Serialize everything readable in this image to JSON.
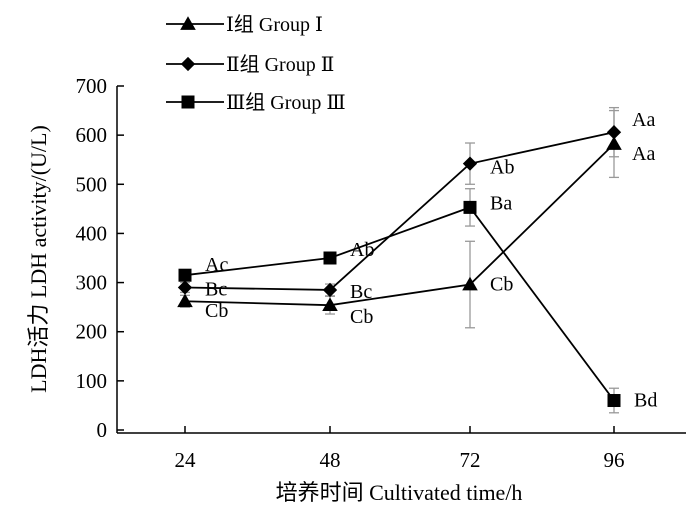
{
  "chart_data": {
    "type": "line",
    "title": "",
    "xlabel": "培养时间  Cultivated time/h",
    "ylabel": "LDH活力  LDH activity/(U/L)",
    "x": [
      24,
      48,
      72,
      96
    ],
    "x_tick_labels": [
      "24",
      "48",
      "72",
      "96"
    ],
    "ylim": [
      0,
      700
    ],
    "y_ticks": [
      0,
      100,
      200,
      300,
      400,
      500,
      600,
      700
    ],
    "grid": false,
    "legend_position": "top-left",
    "series": [
      {
        "name": "Ⅰ组 Group Ⅰ",
        "marker": "triangle",
        "values": [
          262,
          254,
          296,
          582
        ],
        "errors": [
          12,
          18,
          88,
          68
        ],
        "labels": [
          "Cb",
          "Cb",
          "Cb",
          "Aa"
        ]
      },
      {
        "name": "Ⅱ组 Group Ⅱ",
        "marker": "diamond",
        "values": [
          290,
          285,
          542,
          606
        ],
        "errors": [
          10,
          12,
          42,
          50
        ],
        "labels": [
          "Bc",
          "Bc",
          "Ab",
          "Aa"
        ]
      },
      {
        "name": "Ⅲ组 Group Ⅲ",
        "marker": "square",
        "values": [
          315,
          350,
          453,
          60
        ],
        "errors": [
          6,
          8,
          38,
          25
        ],
        "labels": [
          "Ac",
          "Ab",
          "Ba",
          "Bd"
        ]
      }
    ]
  },
  "colors": {
    "line": "#000000",
    "error_bar": "#999999"
  }
}
